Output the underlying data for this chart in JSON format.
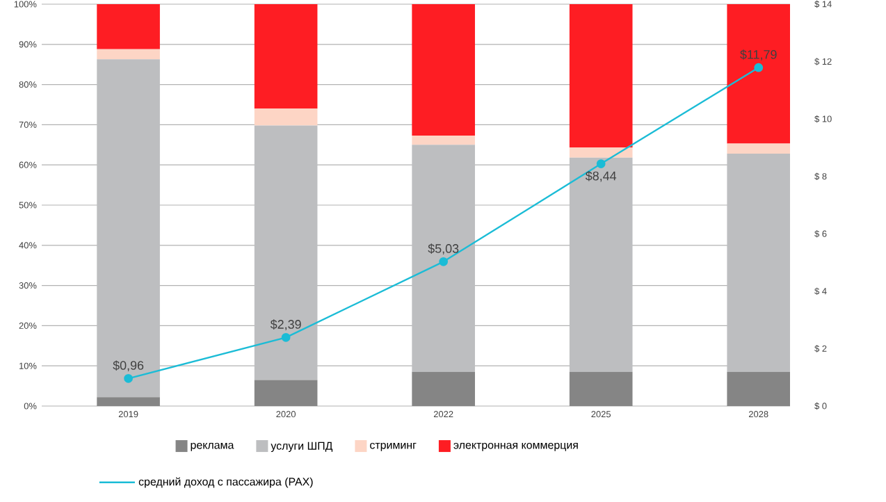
{
  "chart_data": {
    "type": "bar",
    "stacked": true,
    "grid": "y",
    "legend": "bottom",
    "marker": "circle",
    "categories": [
      "2019",
      "2020",
      "2022",
      "2025",
      "2028"
    ],
    "ylim": [
      0,
      100
    ],
    "yticks": [
      {
        "value": 0,
        "label": "0%"
      },
      {
        "value": 10,
        "label": "10%"
      },
      {
        "value": 20,
        "label": "20%"
      },
      {
        "value": 30,
        "label": "30%"
      },
      {
        "value": 40,
        "label": "40%"
      },
      {
        "value": 50,
        "label": "50%"
      },
      {
        "value": 60,
        "label": "60%"
      },
      {
        "value": 70,
        "label": "70%"
      },
      {
        "value": 80,
        "label": "80%"
      },
      {
        "value": 90,
        "label": "90%"
      },
      {
        "value": 100,
        "label": "100%"
      }
    ],
    "y2lim": [
      0,
      14
    ],
    "y2ticks": [
      {
        "value": 0,
        "label": "$ 0"
      },
      {
        "value": 2,
        "label": "$ 2"
      },
      {
        "value": 4,
        "label": "$ 4"
      },
      {
        "value": 6,
        "label": "$ 6"
      },
      {
        "value": 8,
        "label": "$ 8"
      },
      {
        "value": 10,
        "label": "$ 10"
      },
      {
        "value": 12,
        "label": "$ 12"
      },
      {
        "value": 14,
        "label": "$ 14"
      }
    ],
    "series": [
      {
        "name": "реклама",
        "color": "#858585",
        "values": [
          2.2,
          6.5,
          8.5,
          8.5,
          8.5
        ]
      },
      {
        "name": "услуги ШПД",
        "color": "#bdbec0",
        "values": [
          84.1,
          63.3,
          56.5,
          53.3,
          54.3
        ]
      },
      {
        "name": "стриминг",
        "color": "#fdd5c5",
        "values": [
          2.5,
          4.2,
          2.3,
          2.5,
          2.5
        ]
      },
      {
        "name": "электронная коммерция",
        "color": "#fe1d23",
        "values": [
          11.2,
          26,
          32.7,
          35.7,
          34.7
        ]
      },
      {
        "name": "средний доход с пассажира (PAX)",
        "type": "line",
        "axis": "y2",
        "color": "#1bbcd6",
        "values": [
          0.96,
          2.39,
          5.03,
          8.44,
          11.79
        ],
        "value_labels": [
          "$0,96",
          "$2,39",
          "$5,03",
          "$8,44",
          "$11,79"
        ]
      }
    ]
  }
}
